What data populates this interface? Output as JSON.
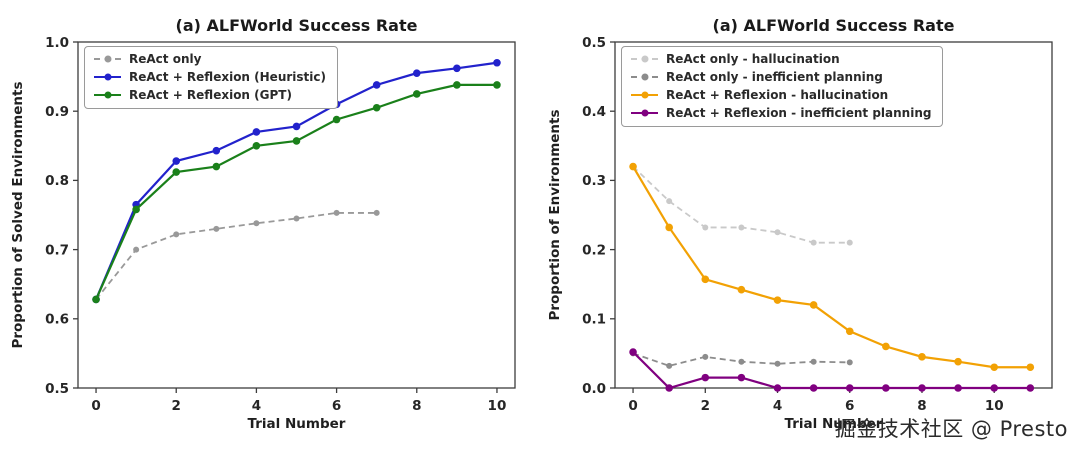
{
  "watermark": "掘金技术社区 @ Presto",
  "chart_data": [
    {
      "type": "line",
      "title": "(a) ALFWorld Success Rate",
      "xlabel": "Trial Number",
      "ylabel": "Proportion of Solved Environments",
      "xlim": [
        -0.45,
        10.45
      ],
      "ylim": [
        0.5,
        1.0
      ],
      "xticks": [
        "0",
        "2",
        "4",
        "6",
        "8",
        "10"
      ],
      "yticks": [
        "0.5",
        "0.6",
        "0.7",
        "0.8",
        "0.9",
        "1.0"
      ],
      "grid": false,
      "legend_position": "upper left",
      "series": [
        {
          "name": "ReAct only",
          "color": "#999999",
          "dash": true,
          "x": [
            0,
            1,
            2,
            3,
            4,
            5,
            6,
            7
          ],
          "y": [
            0.628,
            0.7,
            0.722,
            0.73,
            0.738,
            0.745,
            0.753,
            0.753
          ]
        },
        {
          "name": "ReAct + Reflexion (Heuristic)",
          "color": "#2222cc",
          "dash": false,
          "x": [
            0,
            1,
            2,
            3,
            4,
            5,
            6,
            7,
            8,
            9,
            10
          ],
          "y": [
            0.628,
            0.765,
            0.828,
            0.843,
            0.87,
            0.878,
            0.91,
            0.938,
            0.955,
            0.962,
            0.97
          ]
        },
        {
          "name": "ReAct + Reflexion (GPT)",
          "color": "#1a801a",
          "dash": false,
          "x": [
            0,
            1,
            2,
            3,
            4,
            5,
            6,
            7,
            8,
            9,
            10
          ],
          "y": [
            0.628,
            0.758,
            0.812,
            0.82,
            0.85,
            0.857,
            0.888,
            0.905,
            0.925,
            0.938,
            0.938
          ]
        }
      ]
    },
    {
      "type": "line",
      "title": "(a) ALFWorld Success Rate",
      "xlabel": "Trial Number",
      "ylabel": "Proportion of Environments",
      "xlim": [
        -0.5,
        11.6
      ],
      "ylim": [
        0.0,
        0.5
      ],
      "xticks": [
        "0",
        "2",
        "4",
        "6",
        "8",
        "10"
      ],
      "yticks": [
        "0.0",
        "0.1",
        "0.2",
        "0.3",
        "0.4",
        "0.5"
      ],
      "grid": false,
      "legend_position": "upper left",
      "series": [
        {
          "name": "ReAct only - hallucination",
          "color": "#c9c9c9",
          "dash": true,
          "x": [
            0,
            1,
            2,
            3,
            4,
            5,
            6
          ],
          "y": [
            0.32,
            0.27,
            0.232,
            0.232,
            0.225,
            0.21,
            0.21
          ]
        },
        {
          "name": "ReAct only - inefficient planning",
          "color": "#8c8c8c",
          "dash": true,
          "x": [
            0,
            1,
            2,
            3,
            4,
            5,
            6
          ],
          "y": [
            0.05,
            0.032,
            0.045,
            0.038,
            0.035,
            0.038,
            0.037
          ]
        },
        {
          "name": "ReAct + Reflexion - hallucination",
          "color": "#f2a104",
          "dash": false,
          "x": [
            0,
            1,
            2,
            3,
            4,
            5,
            6,
            7,
            8,
            9,
            10,
            11
          ],
          "y": [
            0.32,
            0.232,
            0.157,
            0.142,
            0.127,
            0.12,
            0.082,
            0.06,
            0.045,
            0.038,
            0.03,
            0.03
          ]
        },
        {
          "name": "ReAct + Reflexion - inefficient planning",
          "color": "#800080",
          "dash": false,
          "x": [
            0,
            1,
            2,
            3,
            4,
            5,
            6,
            7,
            8,
            9,
            10,
            11
          ],
          "y": [
            0.052,
            0.0,
            0.015,
            0.015,
            0.0,
            0.0,
            0.0,
            0.0,
            0.0,
            0.0,
            0.0,
            0.0
          ]
        }
      ]
    }
  ]
}
